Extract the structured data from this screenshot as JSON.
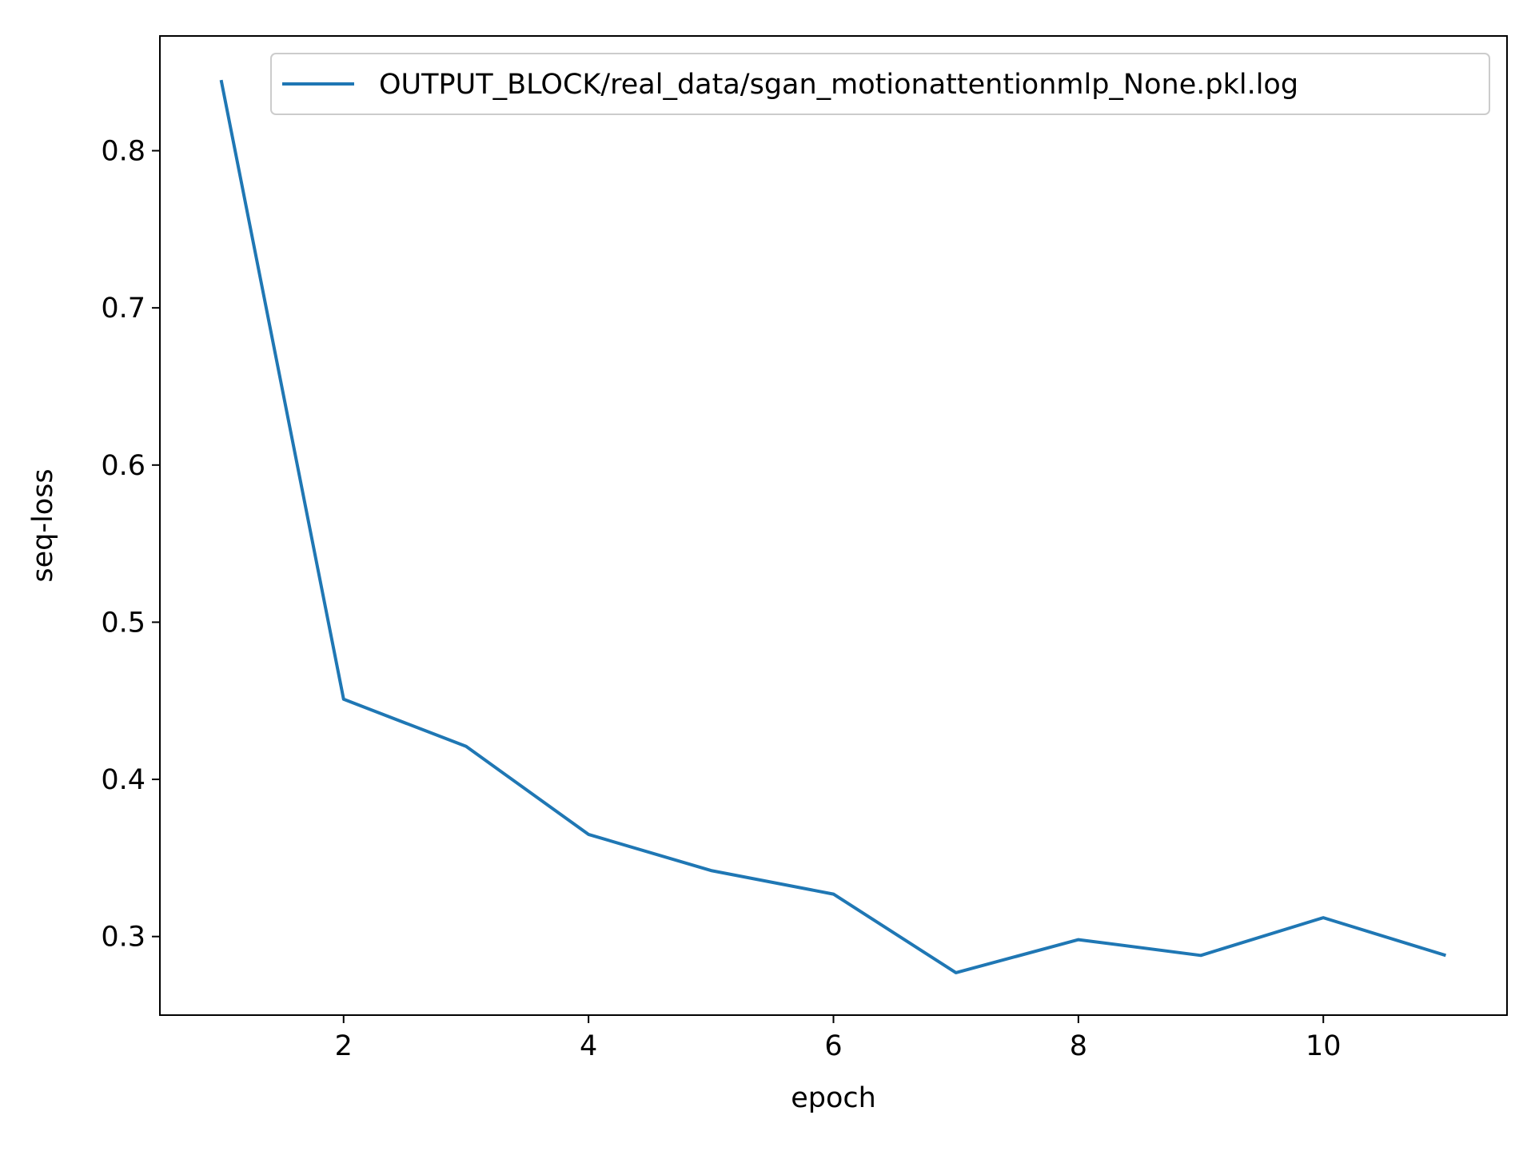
{
  "chart_data": {
    "type": "line",
    "title": "",
    "xlabel": "epoch",
    "ylabel": "seq-loss",
    "xlim": [
      0.5,
      11.5
    ],
    "ylim": [
      0.25,
      0.873
    ],
    "xticks": [
      2,
      4,
      6,
      8,
      10
    ],
    "xtick_labels": [
      "2",
      "4",
      "6",
      "8",
      "10"
    ],
    "yticks": [
      0.3,
      0.4,
      0.5,
      0.6,
      0.7,
      0.8
    ],
    "ytick_labels": [
      "0.3",
      "0.4",
      "0.5",
      "0.6",
      "0.7",
      "0.8"
    ],
    "grid": false,
    "legend_position": "top-right",
    "series": [
      {
        "name": "OUTPUT_BLOCK/real_data/sgan_motionattentionmlp_None.pkl.log",
        "color": "#1f77b4",
        "x": [
          1,
          2,
          3,
          4,
          5,
          6,
          7,
          8,
          9,
          10,
          11
        ],
        "y": [
          0.845,
          0.451,
          0.421,
          0.365,
          0.342,
          0.327,
          0.277,
          0.298,
          0.288,
          0.312,
          0.288
        ]
      }
    ]
  }
}
